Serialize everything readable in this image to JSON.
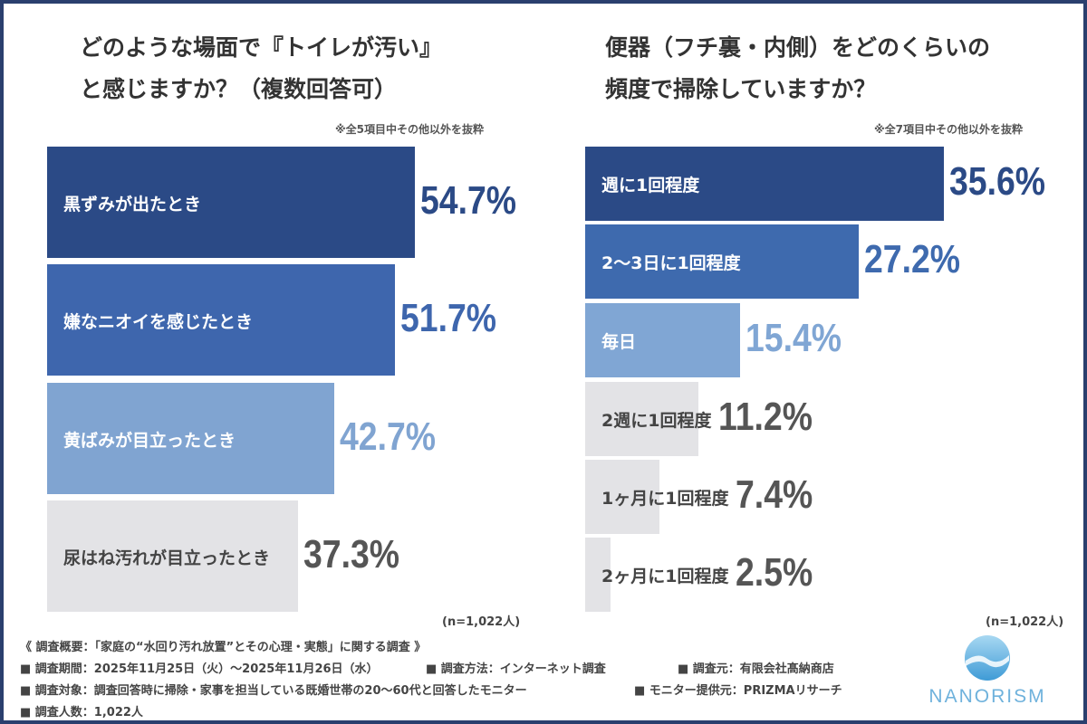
{
  "chart_data": [
    {
      "type": "bar",
      "orientation": "horizontal",
      "title": "どのような場面で『トイレが汚い』と感じますか？（複数回答可）",
      "note": "※全5項目中その他以外を抜粋",
      "sample": "(n=1,022人)",
      "categories": [
        "黒ずみが出たとき",
        "嫌なニオイを感じたとき",
        "黄ばみが目立ったとき",
        "尿はね汚れが目立ったとき"
      ],
      "values": [
        54.7,
        51.7,
        42.7,
        37.3
      ],
      "labels": [
        "54.7%",
        "51.7%",
        "42.7%",
        "37.3%"
      ],
      "colors": [
        "#2b4a86",
        "#3e66ad",
        "#80a4d1",
        "#e3e3e6"
      ],
      "value_colors": [
        "#2b4a86",
        "#3e66ad",
        "#80a4d1",
        "#555555"
      ],
      "label_colors": [
        "#ffffff",
        "#ffffff",
        "#ffffff",
        "#444444"
      ]
    },
    {
      "type": "bar",
      "orientation": "horizontal",
      "title": "便器（フチ裏・内側）をどのくらいの頻度で掃除していますか？",
      "note": "※全7項目中その他以外を抜粋",
      "sample": "(n=1,022人)",
      "categories": [
        "週に1回程度",
        "2〜3日に1回程度",
        "毎日",
        "2週に1回程度",
        "1ヶ月に1回程度",
        "2ヶ月に1回程度"
      ],
      "values": [
        35.6,
        27.2,
        15.4,
        11.2,
        7.4,
        2.5
      ],
      "labels": [
        "35.6%",
        "27.2%",
        "15.4%",
        "11.2%",
        "7.4%",
        "2.5%"
      ],
      "colors": [
        "#2b4a86",
        "#3e6aae",
        "#80a6d4",
        "#e3e3e6",
        "#e3e3e6",
        "#e3e3e6"
      ],
      "value_colors": [
        "#2b4a86",
        "#3e6aae",
        "#80a6d4",
        "#555555",
        "#555555",
        "#555555"
      ],
      "label_colors": [
        "#ffffff",
        "#ffffff",
        "#ffffff",
        "#444444",
        "#444444",
        "#444444"
      ]
    }
  ],
  "titles": {
    "left": [
      "どのような場面で『トイレが汚い』",
      "と感じますか？（複数回答可）"
    ],
    "right": [
      "便器（フチ裏・内側）をどのくらいの",
      "頻度で掃除していますか？"
    ]
  },
  "footer": {
    "line1": "《 調査概要：「家庭の“水回り汚れ放置”とその心理・実態」に関する調査 》",
    "period": "■ 調査期間：2025年11月25日（火）〜2025年11月26日（水）",
    "method": "■ 調査方法：インターネット調査",
    "source": "■ 調査元：有限会社髙納商店",
    "target": "■ 調査対象：調査回答時に掃除・家事を担当している既婚世帯の20〜60代と回答したモニター",
    "provider": "■ モニター提供元：PRIZMAリサーチ",
    "count": "■ 調査人数：1,022人"
  },
  "logo": {
    "text": "NANORISM"
  }
}
